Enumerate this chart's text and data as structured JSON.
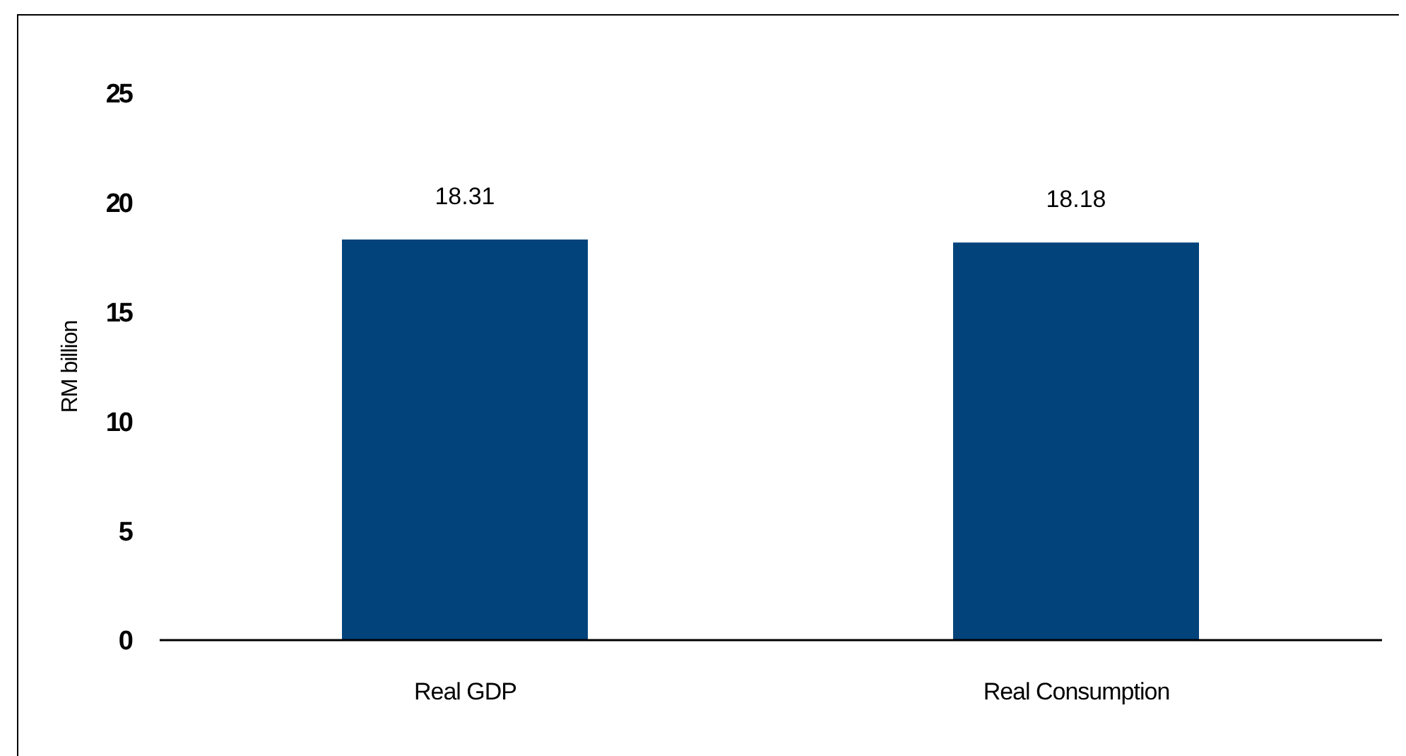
{
  "chart_data": {
    "type": "bar",
    "categories": [
      "Real GDP",
      "Real Consumption"
    ],
    "values": [
      18.31,
      18.18
    ],
    "color": "#01437a",
    "ylabel": "RM billion",
    "ylim": [
      0,
      25
    ],
    "yticks": [
      0,
      5,
      10,
      15,
      20,
      25
    ],
    "data_labels": true
  }
}
